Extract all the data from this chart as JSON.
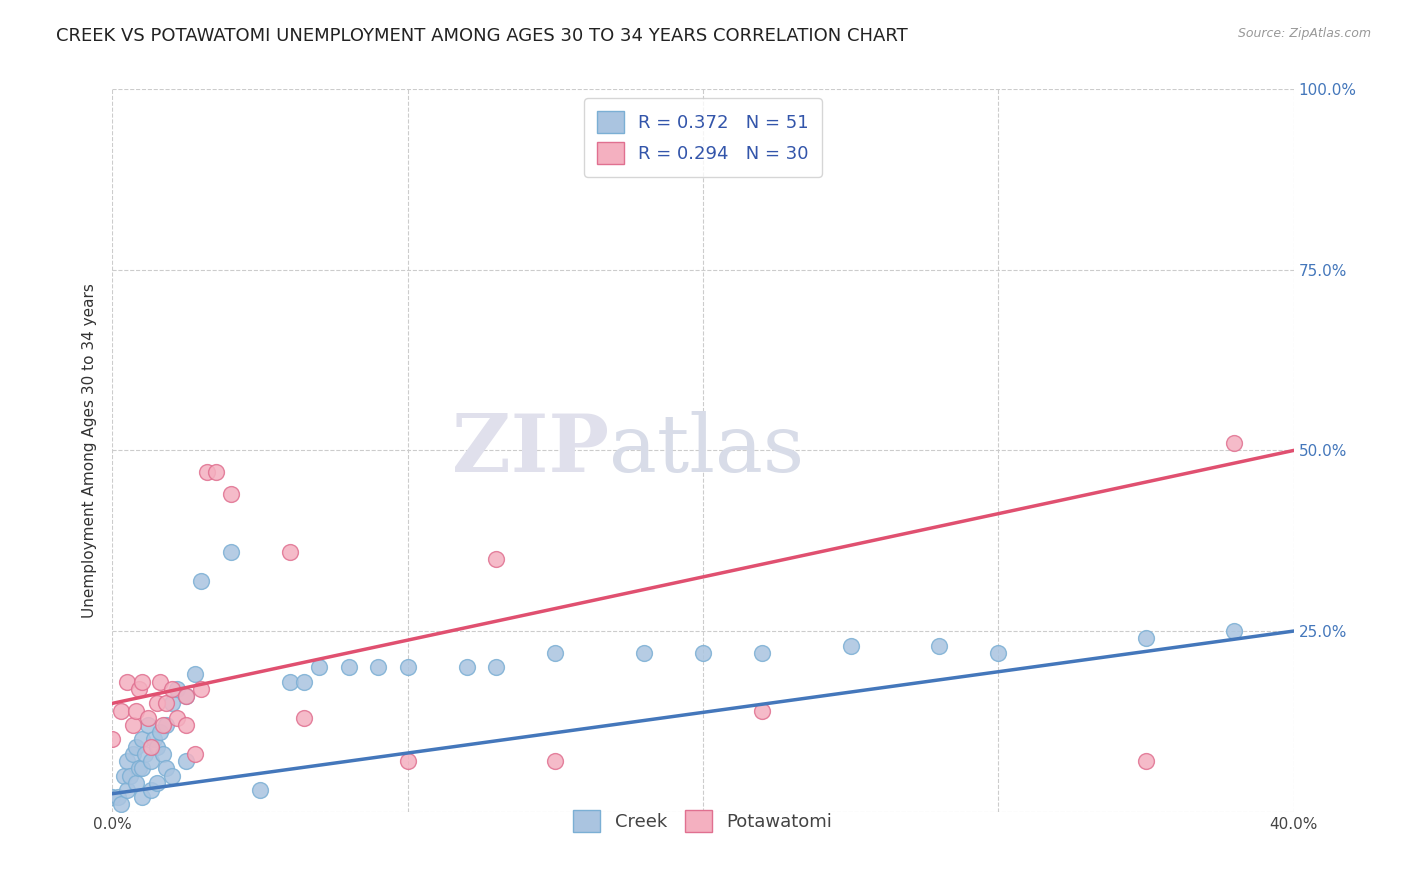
{
  "title": "CREEK VS POTAWATOMI UNEMPLOYMENT AMONG AGES 30 TO 34 YEARS CORRELATION CHART",
  "source": "Source: ZipAtlas.com",
  "xlabel": "",
  "ylabel": "Unemployment Among Ages 30 to 34 years",
  "xlim": [
    0.0,
    0.4
  ],
  "ylim": [
    0.0,
    1.0
  ],
  "xticks": [
    0.0,
    0.1,
    0.2,
    0.3,
    0.4
  ],
  "xticklabels": [
    "0.0%",
    "",
    "",
    "",
    "40.0%"
  ],
  "yticks_right": [
    0.0,
    0.25,
    0.5,
    0.75,
    1.0
  ],
  "yticklabels_right": [
    "",
    "25.0%",
    "50.0%",
    "75.0%",
    "100.0%"
  ],
  "background_color": "#ffffff",
  "grid_color": "#cccccc",
  "watermark_zip": "ZIP",
  "watermark_atlas": "atlas",
  "creek_color": "#aac4e0",
  "creek_edge_color": "#7bafd4",
  "potawatomi_color": "#f4b0c0",
  "potawatomi_edge_color": "#e07090",
  "creek_line_color": "#4477bb",
  "potawatomi_line_color": "#e05070",
  "legend_R_color": "#3355aa",
  "creek_R": 0.372,
  "creek_N": 51,
  "potawatomi_R": 0.294,
  "potawatomi_N": 30,
  "creek_line_x0": 0.0,
  "creek_line_y0": 0.025,
  "creek_line_x1": 0.4,
  "creek_line_y1": 0.25,
  "potawatomi_line_x0": 0.0,
  "potawatomi_line_y0": 0.15,
  "potawatomi_line_x1": 0.4,
  "potawatomi_line_y1": 0.5,
  "creek_x": [
    0.0,
    0.002,
    0.003,
    0.004,
    0.005,
    0.005,
    0.006,
    0.007,
    0.008,
    0.008,
    0.009,
    0.01,
    0.01,
    0.01,
    0.011,
    0.012,
    0.013,
    0.013,
    0.014,
    0.015,
    0.015,
    0.016,
    0.017,
    0.018,
    0.018,
    0.02,
    0.02,
    0.022,
    0.025,
    0.025,
    0.028,
    0.03,
    0.04,
    0.05,
    0.06,
    0.065,
    0.07,
    0.08,
    0.09,
    0.1,
    0.12,
    0.13,
    0.15,
    0.18,
    0.2,
    0.22,
    0.25,
    0.28,
    0.3,
    0.35,
    0.38
  ],
  "creek_y": [
    0.02,
    0.02,
    0.01,
    0.05,
    0.07,
    0.03,
    0.05,
    0.08,
    0.04,
    0.09,
    0.06,
    0.1,
    0.06,
    0.02,
    0.08,
    0.12,
    0.07,
    0.03,
    0.1,
    0.09,
    0.04,
    0.11,
    0.08,
    0.12,
    0.06,
    0.15,
    0.05,
    0.17,
    0.16,
    0.07,
    0.19,
    0.32,
    0.36,
    0.03,
    0.18,
    0.18,
    0.2,
    0.2,
    0.2,
    0.2,
    0.2,
    0.2,
    0.22,
    0.22,
    0.22,
    0.22,
    0.23,
    0.23,
    0.22,
    0.24,
    0.25
  ],
  "potawatomi_x": [
    0.0,
    0.003,
    0.005,
    0.007,
    0.008,
    0.009,
    0.01,
    0.012,
    0.013,
    0.015,
    0.016,
    0.017,
    0.018,
    0.02,
    0.022,
    0.025,
    0.025,
    0.028,
    0.03,
    0.032,
    0.035,
    0.04,
    0.06,
    0.065,
    0.1,
    0.13,
    0.15,
    0.22,
    0.35,
    0.38
  ],
  "potawatomi_y": [
    0.1,
    0.14,
    0.18,
    0.12,
    0.14,
    0.17,
    0.18,
    0.13,
    0.09,
    0.15,
    0.18,
    0.12,
    0.15,
    0.17,
    0.13,
    0.16,
    0.12,
    0.08,
    0.17,
    0.47,
    0.47,
    0.44,
    0.36,
    0.13,
    0.07,
    0.35,
    0.07,
    0.14,
    0.07,
    0.51
  ],
  "marker_size": 130,
  "line_width": 2.5,
  "title_fontsize": 13,
  "axis_fontsize": 11,
  "tick_fontsize": 11,
  "legend_fontsize": 13
}
